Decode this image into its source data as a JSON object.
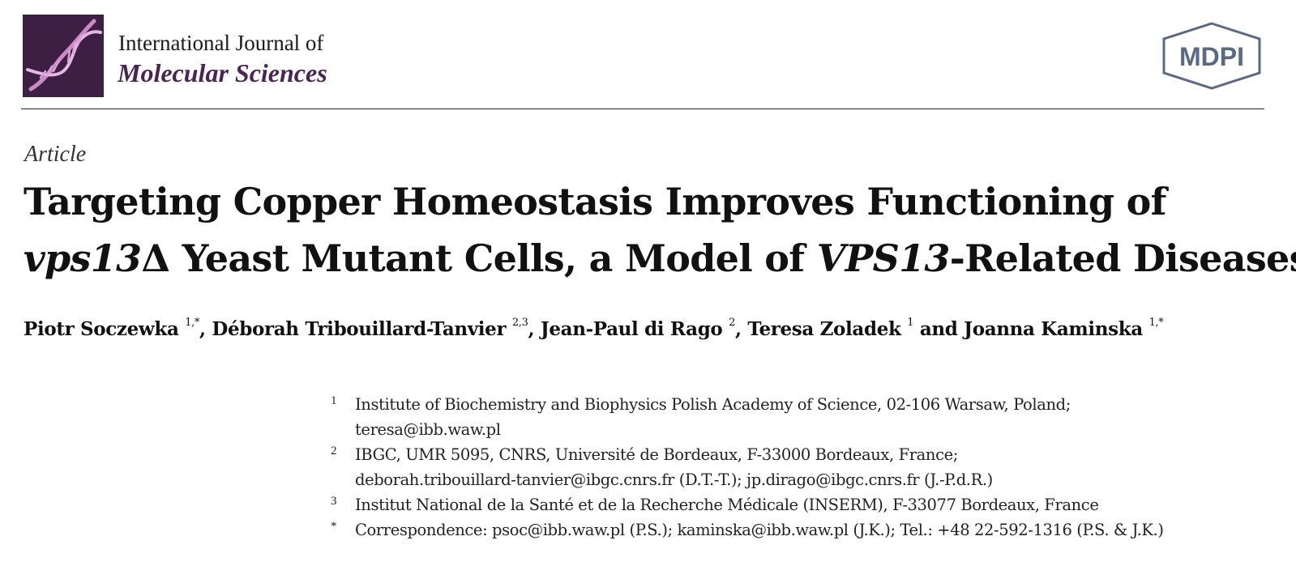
{
  "header": {
    "journal_line1": "International Journal of",
    "journal_line2": "Molecular Sciences",
    "logo_icon": "dna-helix-icon",
    "publisher": "MDPI",
    "brand_color": "#3d1f44",
    "journal_name_color": "#4a2453"
  },
  "article": {
    "type": "Article",
    "title": {
      "line1": "Targeting Copper Homeostasis Improves Functioning of",
      "line2_italic_a": "vps13",
      "line2_a": "Δ Yeast Mutant Cells, a Model of ",
      "line2_italic_b": "VPS13",
      "line2_b": "-Related Diseases"
    },
    "authors": [
      {
        "name": "Piotr Soczewka",
        "sup": "1,*",
        "sep": ", "
      },
      {
        "name": "Déborah Tribouillard-Tanvier",
        "sup": "2,3",
        "sep": ", "
      },
      {
        "name": "Jean-Paul di Rago",
        "sup": "2",
        "sep": ", "
      },
      {
        "name": "Teresa Zoladek",
        "sup": "1",
        "sep": " and "
      },
      {
        "name": "Joanna Kaminska",
        "sup": "1,*",
        "sep": ""
      }
    ],
    "affiliations": [
      {
        "num": "1",
        "lines": [
          "Institute of Biochemistry and Biophysics Polish Academy of Science, 02-106 Warsaw, Poland;",
          "teresa@ibb.waw.pl"
        ]
      },
      {
        "num": "2",
        "lines": [
          "IBGC, UMR 5095, CNRS, Université de Bordeaux, F-33000 Bordeaux, France;",
          "deborah.tribouillard-tanvier@ibgc.cnrs.fr (D.T.-T.); jp.dirago@ibgc.cnrs.fr (J.-P.d.R.)"
        ]
      },
      {
        "num": "3",
        "lines": [
          "Institut National de la Santé et de la Recherche Médicale (INSERM), F-33077 Bordeaux, France"
        ]
      },
      {
        "num": "*",
        "lines": [
          "Correspondence: psoc@ibb.waw.pl (P.S.); kaminska@ibb.waw.pl (J.K.); Tel.: +48 22-592-1316 (P.S. & J.K.)"
        ]
      }
    ]
  }
}
